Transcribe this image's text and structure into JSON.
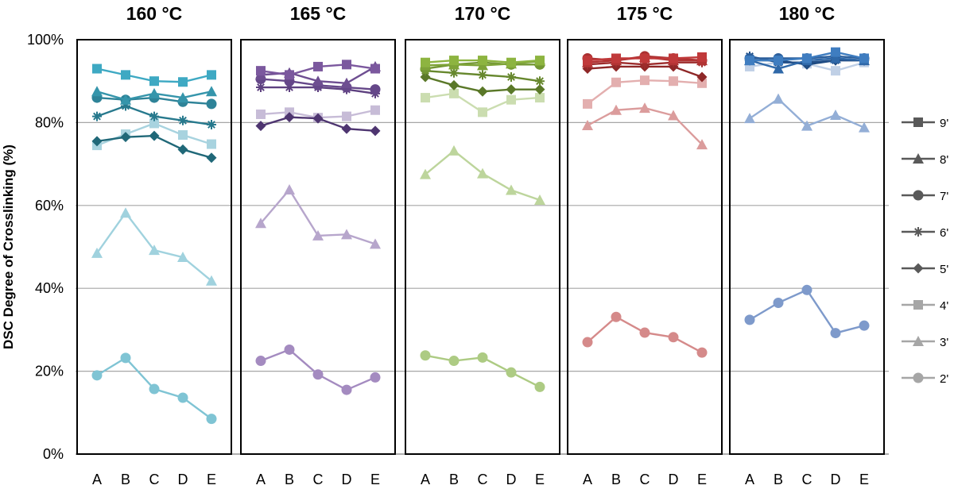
{
  "chart_data": {
    "type": "line",
    "ylabel": "DSC Degree of Crosslinking (%)",
    "ylim": [
      0,
      100
    ],
    "yticks": [
      "0%",
      "20%",
      "40%",
      "60%",
      "80%",
      "100%"
    ],
    "categories": [
      "A",
      "B",
      "C",
      "D",
      "E"
    ],
    "grid": true,
    "legend_placement": "right",
    "legend": [
      {
        "name": "9'",
        "marker": "square"
      },
      {
        "name": "8'",
        "marker": "triangle"
      },
      {
        "name": "7'",
        "marker": "circle"
      },
      {
        "name": "6'",
        "marker": "star"
      },
      {
        "name": "5'",
        "marker": "diamond"
      },
      {
        "name": "4'",
        "marker": "square"
      },
      {
        "name": "3'",
        "marker": "triangle"
      },
      {
        "name": "2'",
        "marker": "circle"
      }
    ],
    "panels": [
      {
        "title": "160 °C",
        "series": [
          {
            "name": "9'",
            "color": "#3EA9C3",
            "values": [
              93,
              91.5,
              90,
              89.8,
              91.5
            ]
          },
          {
            "name": "8'",
            "color": "#3595AB",
            "values": [
              87.5,
              85.5,
              87,
              86,
              87.5
            ]
          },
          {
            "name": "7'",
            "color": "#2E8398",
            "values": [
              86,
              85.5,
              86,
              85,
              84.5
            ]
          },
          {
            "name": "6'",
            "color": "#27798D",
            "values": [
              81.5,
              84,
              81.5,
              80.5,
              79.5
            ]
          },
          {
            "name": "5'",
            "color": "#206878",
            "values": [
              75.5,
              76.5,
              76.8,
              73.5,
              71.5
            ]
          },
          {
            "name": "4'",
            "color": "#A8D3DF",
            "values": [
              74.5,
              77.2,
              79.8,
              77,
              74.8
            ]
          },
          {
            "name": "3'",
            "color": "#A0D2DE",
            "values": [
              48.5,
              58.2,
              49.2,
              47.5,
              41.8
            ]
          },
          {
            "name": "2'",
            "color": "#7FC4D4",
            "values": [
              19,
              23.2,
              15.7,
              13.6,
              8.5
            ]
          }
        ]
      },
      {
        "title": "165 °C",
        "series": [
          {
            "name": "9'",
            "color": "#7B589E",
            "values": [
              92.5,
              91.5,
              93.5,
              94,
              93
            ]
          },
          {
            "name": "8'",
            "color": "#6E4E91",
            "values": [
              91.5,
              92,
              90,
              89.5,
              93.5
            ]
          },
          {
            "name": "7'",
            "color": "#654789",
            "values": [
              90.5,
              90,
              89,
              88.5,
              88
            ]
          },
          {
            "name": "6'",
            "color": "#5E4180",
            "values": [
              88.5,
              88.5,
              88.5,
              88,
              87
            ]
          },
          {
            "name": "5'",
            "color": "#4E3570",
            "values": [
              79.2,
              81.3,
              81,
              78.5,
              78
            ]
          },
          {
            "name": "4'",
            "color": "#C7BCD7",
            "values": [
              82,
              82.5,
              81.2,
              81.5,
              83
            ]
          },
          {
            "name": "3'",
            "color": "#B7A6CC",
            "values": [
              55.7,
              63.8,
              52.7,
              53,
              50.7
            ]
          },
          {
            "name": "2'",
            "color": "#A48BC0",
            "values": [
              22.5,
              25.2,
              19.2,
              15.5,
              18.5
            ]
          }
        ]
      },
      {
        "title": "170 °C",
        "series": [
          {
            "name": "9'",
            "color": "#8DB440",
            "values": [
              94.5,
              95,
              95,
              94.5,
              95
            ]
          },
          {
            "name": "8'",
            "color": "#7EA338",
            "values": [
              93.8,
              94,
              93.8,
              94.2,
              94.8
            ]
          },
          {
            "name": "7'",
            "color": "#739733",
            "values": [
              93,
              94,
              94.5,
              94,
              94
            ]
          },
          {
            "name": "6'",
            "color": "#67882E",
            "values": [
              92.5,
              92,
              91.5,
              91,
              90
            ]
          },
          {
            "name": "5'",
            "color": "#5A7828",
            "values": [
              91,
              89,
              87.5,
              88,
              88
            ]
          },
          {
            "name": "4'",
            "color": "#CBDDB0",
            "values": [
              86,
              87,
              82.5,
              85.5,
              86
            ]
          },
          {
            "name": "3'",
            "color": "#BDD59C",
            "values": [
              67.5,
              73.2,
              67.7,
              63.7,
              61.3
            ]
          },
          {
            "name": "2'",
            "color": "#ADCB83",
            "values": [
              23.8,
              22.5,
              23.3,
              19.7,
              16.2
            ]
          }
        ]
      },
      {
        "title": "175 °C",
        "series": [
          {
            "name": "9'",
            "color": "#C0393A",
            "values": [
              95,
              95.5,
              95.5,
              95.5,
              95.8
            ]
          },
          {
            "name": "8'",
            "color": "#B23434",
            "values": [
              94.5,
              95,
              95.8,
              95,
              95
            ]
          },
          {
            "name": "7'",
            "color": "#A93030",
            "values": [
              95.5,
              95,
              96,
              95.5,
              95
            ]
          },
          {
            "name": "6'",
            "color": "#9D2C2C",
            "values": [
              94,
              94.5,
              94,
              94.5,
              94.5
            ]
          },
          {
            "name": "5'",
            "color": "#8E2727",
            "values": [
              93,
              93.5,
              93.5,
              93.5,
              91
            ]
          },
          {
            "name": "4'",
            "color": "#E3AFAF",
            "values": [
              84.5,
              89.7,
              90.2,
              90,
              89.5
            ]
          },
          {
            "name": "3'",
            "color": "#DB9C9C",
            "values": [
              79.3,
              83,
              83.5,
              81.7,
              74.7
            ]
          },
          {
            "name": "2'",
            "color": "#D58A8A",
            "values": [
              27,
              33.1,
              29.3,
              28.2,
              24.5
            ]
          }
        ]
      },
      {
        "title": "180 °C",
        "series": [
          {
            "name": "9'",
            "color": "#3F7DC0",
            "values": [
              95,
              95,
              95.5,
              97,
              95.5
            ]
          },
          {
            "name": "8'",
            "color": "#2F68A8",
            "values": [
              95,
              93,
              95,
              95.5,
              95
            ]
          },
          {
            "name": "7'",
            "color": "#2C5F9C",
            "values": [
              95.5,
              95.5,
              95.5,
              96,
              95.5
            ]
          },
          {
            "name": "6'",
            "color": "#224F88",
            "values": [
              96,
              94.5,
              94.5,
              95,
              95
            ]
          },
          {
            "name": "5'",
            "color": "#1E4A80",
            "values": [
              95,
              95,
              94,
              95,
              95
            ]
          },
          {
            "name": "4'",
            "color": "#C0D0E6",
            "values": [
              93.5,
              94.5,
              94.2,
              92.5,
              94.5
            ]
          },
          {
            "name": "3'",
            "color": "#93AED6",
            "values": [
              81,
              85.7,
              79.2,
              81.8,
              78.8
            ]
          },
          {
            "name": "2'",
            "color": "#7E9ACB",
            "values": [
              32.4,
              36.5,
              39.6,
              29.2,
              31
            ]
          }
        ]
      }
    ]
  }
}
